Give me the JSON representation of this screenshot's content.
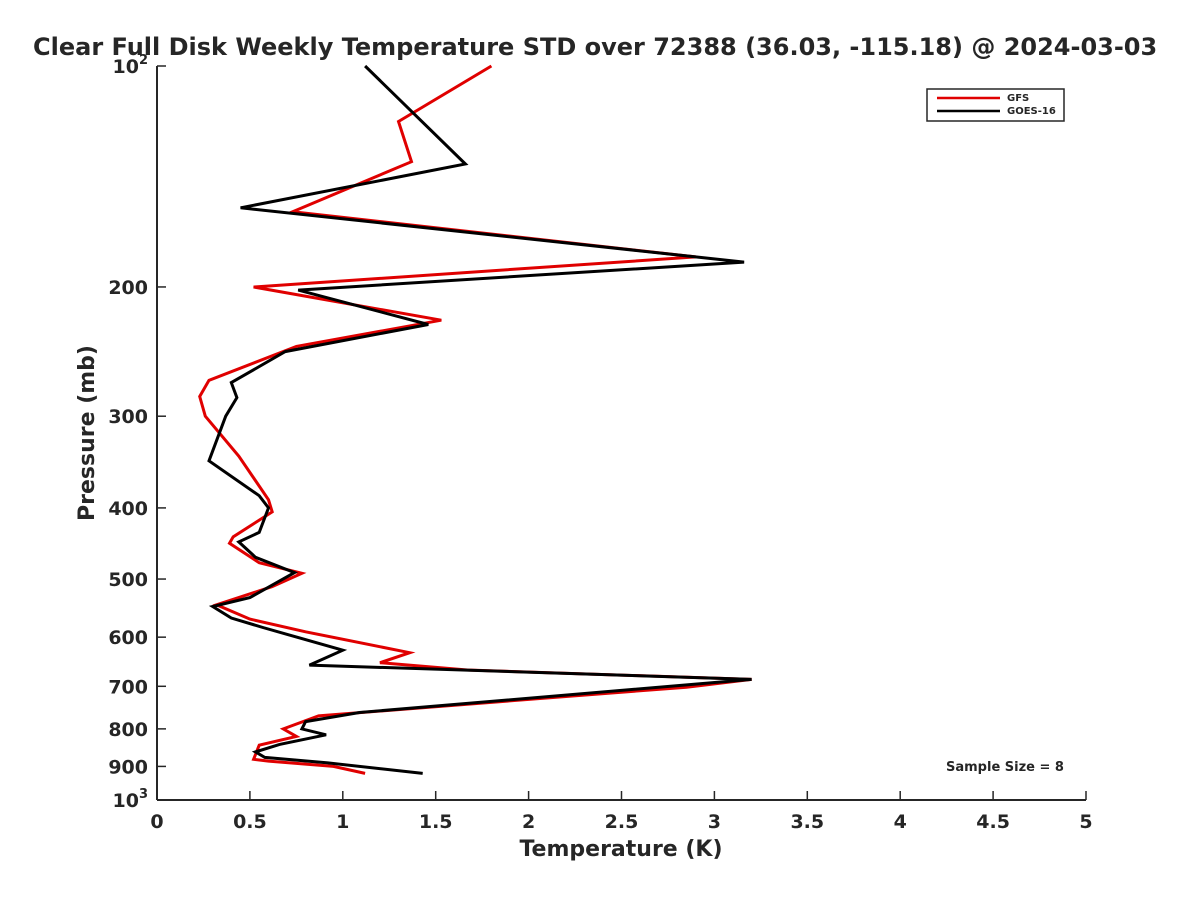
{
  "chart_data": {
    "type": "line",
    "title": "Clear Full Disk Weekly Temperature STD over 72388 (36.03, -115.18) @ 2024-03-03",
    "xlabel": "Temperature (K)",
    "ylabel": "Pressure (mb)",
    "xlim": [
      0,
      5
    ],
    "ylim": [
      100,
      1000
    ],
    "y_scale": "log",
    "y_reversed": true,
    "grid": false,
    "x_ticks": [
      {
        "value": 0,
        "label": "0"
      },
      {
        "value": 0.5,
        "label": "0.5"
      },
      {
        "value": 1,
        "label": "1"
      },
      {
        "value": 1.5,
        "label": "1.5"
      },
      {
        "value": 2,
        "label": "2"
      },
      {
        "value": 2.5,
        "label": "2.5"
      },
      {
        "value": 3,
        "label": "3"
      },
      {
        "value": 3.5,
        "label": "3.5"
      },
      {
        "value": 4,
        "label": "4"
      },
      {
        "value": 4.5,
        "label": "4.5"
      },
      {
        "value": 5,
        "label": "5"
      }
    ],
    "y_ticks": [
      {
        "value": 100,
        "label": "10",
        "sup": "2"
      },
      {
        "value": 200,
        "label": "200"
      },
      {
        "value": 300,
        "label": "300"
      },
      {
        "value": 400,
        "label": "400"
      },
      {
        "value": 500,
        "label": "500"
      },
      {
        "value": 600,
        "label": "600"
      },
      {
        "value": 700,
        "label": "700"
      },
      {
        "value": 800,
        "label": "800"
      },
      {
        "value": 900,
        "label": "900"
      },
      {
        "value": 1000,
        "label": "10",
        "sup": "3"
      }
    ],
    "legend_position": "top-right",
    "annotation": "Sample Size = 8",
    "series": [
      {
        "name": "GFS",
        "color": "#e00000",
        "points": [
          [
            1.8,
            100
          ],
          [
            1.3,
            119
          ],
          [
            1.37,
            135
          ],
          [
            0.73,
            158
          ],
          [
            2.9,
            182
          ],
          [
            0.52,
            200
          ],
          [
            1.53,
            222
          ],
          [
            0.75,
            241
          ],
          [
            0.28,
            268
          ],
          [
            0.23,
            282
          ],
          [
            0.26,
            300
          ],
          [
            0.44,
            340
          ],
          [
            0.6,
            390
          ],
          [
            0.62,
            405
          ],
          [
            0.41,
            438
          ],
          [
            0.39,
            447
          ],
          [
            0.55,
            475
          ],
          [
            0.78,
            491
          ],
          [
            0.62,
            512
          ],
          [
            0.32,
            542
          ],
          [
            0.5,
            567
          ],
          [
            0.8,
            590
          ],
          [
            1.36,
            630
          ],
          [
            1.2,
            650
          ],
          [
            1.67,
            665
          ],
          [
            3.2,
            685
          ],
          [
            2.85,
            702
          ],
          [
            2.07,
            727
          ],
          [
            0.87,
            768
          ],
          [
            0.68,
            800
          ],
          [
            0.75,
            819
          ],
          [
            0.55,
            842
          ],
          [
            0.52,
            880
          ],
          [
            0.6,
            885
          ],
          [
            0.95,
            900
          ],
          [
            1.12,
            920
          ]
        ]
      },
      {
        "name": "GOES-16",
        "color": "#000000",
        "points": [
          [
            1.12,
            100
          ],
          [
            1.66,
            136
          ],
          [
            0.45,
            156
          ],
          [
            3.16,
            185
          ],
          [
            0.76,
            202
          ],
          [
            1.46,
            225
          ],
          [
            0.69,
            245
          ],
          [
            0.4,
            270
          ],
          [
            0.43,
            283
          ],
          [
            0.37,
            300
          ],
          [
            0.28,
            345
          ],
          [
            0.55,
            385
          ],
          [
            0.6,
            400
          ],
          [
            0.55,
            432
          ],
          [
            0.44,
            445
          ],
          [
            0.53,
            467
          ],
          [
            0.74,
            490
          ],
          [
            0.5,
            530
          ],
          [
            0.3,
            545
          ],
          [
            0.4,
            565
          ],
          [
            0.57,
            582
          ],
          [
            1.0,
            625
          ],
          [
            0.82,
            655
          ],
          [
            3.2,
            685
          ],
          [
            1.09,
            760
          ],
          [
            0.8,
            782
          ],
          [
            0.78,
            800
          ],
          [
            0.91,
            815
          ],
          [
            0.66,
            840
          ],
          [
            0.53,
            860
          ],
          [
            0.58,
            875
          ],
          [
            0.92,
            890
          ],
          [
            1.43,
            920
          ]
        ]
      }
    ]
  }
}
